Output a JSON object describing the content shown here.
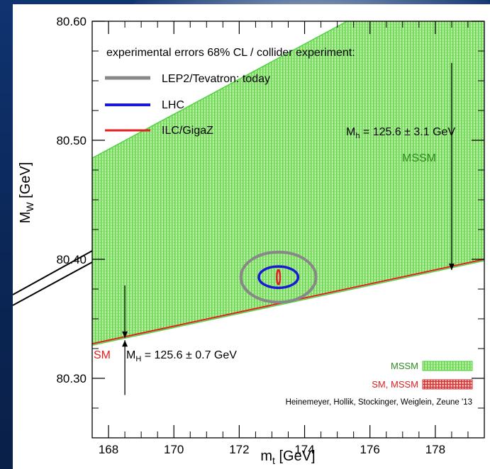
{
  "chart_data": {
    "type": "area",
    "xlabel": "m",
    "xlabel_sub": "t",
    "xlabel_unit": " [GeV]",
    "ylabel": "M",
    "ylabel_sub": "W",
    "ylabel_unit": " [GeV]",
    "xlim": [
      167.5,
      179.5
    ],
    "ylim": [
      80.25,
      80.6
    ],
    "xticks": [
      168,
      170,
      172,
      174,
      176,
      178
    ],
    "xtick_labels": [
      "168",
      "170",
      "172",
      "174",
      "176",
      "178"
    ],
    "yticks": [
      80.3,
      80.4,
      80.5,
      80.6
    ],
    "ytick_labels": [
      "80.30",
      "80.40",
      "80.50",
      "80.60"
    ],
    "mssm_band": {
      "lower_edge": [
        [
          167.5,
          80.329
        ],
        [
          179.5,
          80.4
        ]
      ],
      "upper_edge": [
        [
          167.5,
          80.485
        ],
        [
          175.3,
          80.6
        ]
      ],
      "fill_color": "#9be58a",
      "edge_color": "#4fd33f"
    },
    "sm_line": {
      "points": [
        [
          167.5,
          80.329
        ],
        [
          179.5,
          80.4
        ]
      ],
      "color": "#e02020"
    },
    "side_lines": [
      {
        "points": [
          [
            167.5,
            80.374
          ],
          [
            167.55,
            80.374
          ]
        ]
      }
    ],
    "ellipses": [
      {
        "name": "LEP2/Tevatron: today",
        "cx": 173.2,
        "cy": 80.385,
        "rx": 1.15,
        "ry": 0.021,
        "color": "#888888"
      },
      {
        "name": "LHC",
        "cx": 173.2,
        "cy": 80.385,
        "rx": 0.6,
        "ry": 0.009,
        "color": "#1a1ad6"
      },
      {
        "name": "ILC/GigaZ",
        "cx": 173.2,
        "cy": 80.385,
        "rx": 0.05,
        "ry": 0.006,
        "color": "#e02020"
      }
    ],
    "legend": {
      "title": "experimental errors 68% CL / collider experiment:",
      "entries": [
        {
          "label": "LEP2/Tevatron: today",
          "color": "#888888"
        },
        {
          "label": "LHC",
          "color": "#1a1ad6"
        },
        {
          "label": "ILC/GigaZ",
          "color": "#e02020"
        }
      ]
    },
    "annotations": {
      "mh_mssm": {
        "base": "M",
        "sub": "h",
        "rest": " = 125.6 ± 3.1 GeV"
      },
      "mssm_label": "MSSM",
      "sm_label": "SM",
      "mh_sm": {
        "base": "M",
        "sub": "H",
        "rest": " = 125.6 ± 0.7 GeV"
      },
      "key_mssm": "MSSM",
      "key_sm_mssm": "SM, MSSM",
      "credit": "Heinemeyer, Hollik, Stockinger, Weiglein, Zeune '13"
    },
    "arrows": [
      {
        "x": 178.5,
        "y_from": 80.565,
        "y_to": 80.391
      },
      {
        "x": 168.5,
        "y_from": 80.378,
        "y_to": 80.334
      },
      {
        "x": 168.5,
        "y_from": 80.286,
        "y_to": 80.332
      }
    ]
  }
}
